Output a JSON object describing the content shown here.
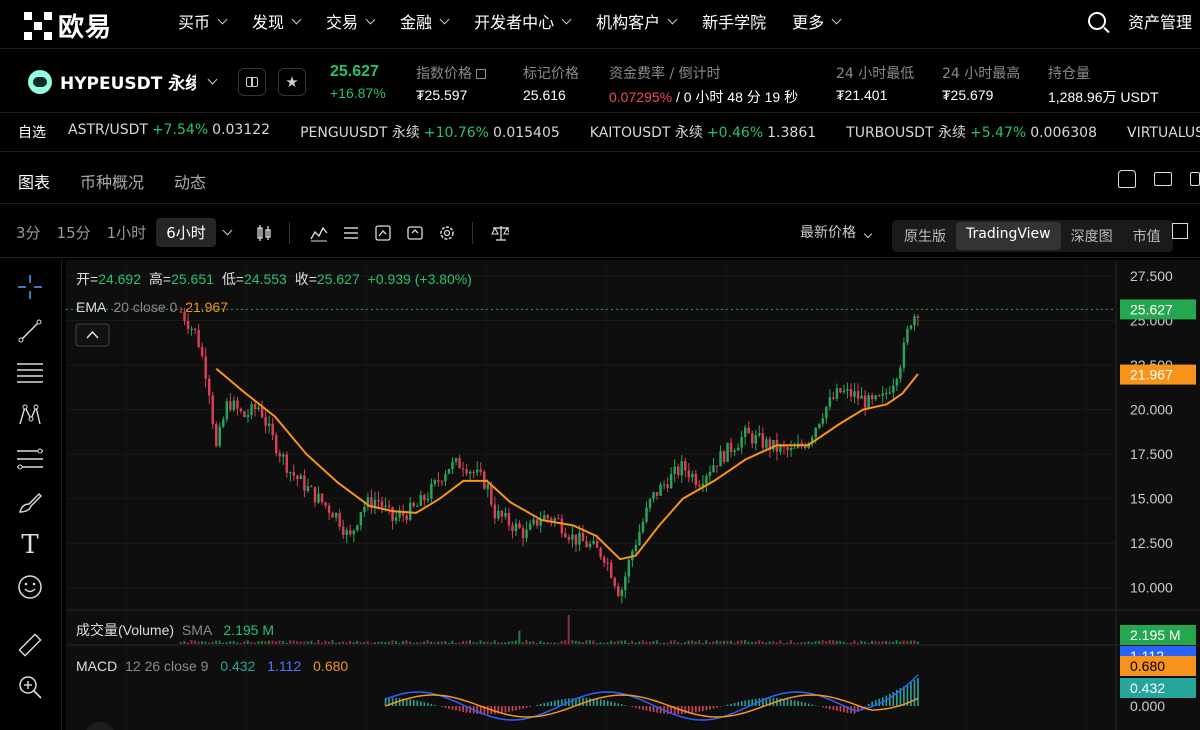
{
  "nav": {
    "logo_text": "欧易",
    "items": [
      "买币",
      "发现",
      "交易",
      "金融",
      "开发者中心",
      "机构客户",
      "新手学院",
      "更多"
    ],
    "has_chevron": [
      true,
      true,
      true,
      true,
      true,
      true,
      false,
      true
    ],
    "assets": "资产管理"
  },
  "ticker": {
    "pair": "HYPEUSDT 永续",
    "last_price": "25.627",
    "change": "+16.87%",
    "stats": [
      {
        "label": "指数价格",
        "value": "₮25.597",
        "ext": true
      },
      {
        "label": "标记价格",
        "value": "25.616"
      },
      {
        "label": "资金费率 / 倒计时",
        "value_red": "0.07295%",
        "value": " / 0 小时 48 分 19 秒"
      },
      {
        "label": "24 小时最低",
        "value": "₮21.401"
      },
      {
        "label": "24 小时最高",
        "value": "₮25.679"
      },
      {
        "label": "持仓量",
        "value": "1,288.96万 USDT"
      }
    ]
  },
  "watchlist": {
    "title": "自选",
    "items": [
      {
        "name": "ASTR/USDT",
        "change": "+7.54%",
        "price": "0.03122"
      },
      {
        "name": "PENGUUSDT 永续",
        "change": "+10.76%",
        "price": "0.015405"
      },
      {
        "name": "KAITOUSDT 永续",
        "change": "+0.46%",
        "price": "1.3861"
      },
      {
        "name": "TURBOUSDT 永续",
        "change": "+5.47%",
        "price": "0.006308"
      },
      {
        "name": "VIRTUALUSDT 永续",
        "change": "+",
        "price": ""
      }
    ]
  },
  "tabs": [
    "图表",
    "币种概况",
    "动态"
  ],
  "toolbar": {
    "timeframes": [
      "3分",
      "15分",
      "1小时",
      "6小时"
    ],
    "active_timeframe": "6小时",
    "price_type": "最新价格",
    "views": [
      "原生版",
      "TradingView",
      "深度图",
      "市值"
    ],
    "active_view": "TradingView"
  },
  "chart_data": {
    "type": "candlestick",
    "ohlc_legend": {
      "open_label": "开=",
      "open": "24.692",
      "high_label": "高=",
      "high": "25.651",
      "low_label": "低=",
      "low": "24.553",
      "close_label": "收=",
      "close": "25.627",
      "change": "+0.939 (+3.80%)"
    },
    "ema_legend": {
      "name": "EMA",
      "params": "20 close 0",
      "value": "21.967"
    },
    "volume_legend": {
      "name": "成交量(Volume)",
      "params": "SMA",
      "value": "2.195 M"
    },
    "macd_legend": {
      "name": "MACD",
      "params": "12 26 close 9",
      "hist": "0.432",
      "macd": "1.112",
      "signal": "0.680"
    },
    "y_ticks": [
      "27.500",
      "25.000",
      "22.500",
      "20.000",
      "17.500",
      "15.000",
      "12.500",
      "10.000"
    ],
    "y_tick_values": [
      27.5,
      25,
      22.5,
      20,
      17.5,
      15,
      12.5,
      10
    ],
    "ylim": [
      8.75,
      28.4
    ],
    "price_tags": [
      {
        "value": 25.627,
        "label": "25.627",
        "color": "#25a750"
      },
      {
        "value": 21.967,
        "label": "21.967",
        "color": "#f7931a"
      }
    ],
    "volume_tag": "2.195 M",
    "macd_tags": [
      {
        "label": "1.112",
        "color": "#2962ff"
      },
      {
        "label": "0.680",
        "color": "#f7931a"
      },
      {
        "label": "0.432",
        "color": "#26a69a"
      }
    ],
    "macd_zero_label": "0.000",
    "price_path": [
      [
        0,
        25.5
      ],
      [
        0.02,
        24.2
      ],
      [
        0.035,
        21.5
      ],
      [
        0.045,
        17.8
      ],
      [
        0.06,
        20.5
      ],
      [
        0.08,
        19.6
      ],
      [
        0.1,
        20.2
      ],
      [
        0.115,
        18.5
      ],
      [
        0.14,
        16.5
      ],
      [
        0.17,
        15.2
      ],
      [
        0.2,
        14.0
      ],
      [
        0.215,
        12.7
      ],
      [
        0.23,
        14.5
      ],
      [
        0.25,
        15.0
      ],
      [
        0.27,
        13.8
      ],
      [
        0.3,
        14.5
      ],
      [
        0.32,
        15.5
      ],
      [
        0.34,
        16.8
      ],
      [
        0.36,
        17.0
      ],
      [
        0.375,
        16.4
      ],
      [
        0.39,
        15.8
      ],
      [
        0.4,
        14.2
      ],
      [
        0.42,
        13.6
      ],
      [
        0.44,
        13.0
      ],
      [
        0.46,
        14.0
      ],
      [
        0.48,
        13.8
      ],
      [
        0.5,
        12.8
      ],
      [
        0.52,
        12.4
      ],
      [
        0.54,
        11.8
      ],
      [
        0.55,
        10.8
      ],
      [
        0.56,
        9.6
      ],
      [
        0.575,
        12.0
      ],
      [
        0.59,
        13.8
      ],
      [
        0.6,
        15.0
      ],
      [
        0.62,
        16.0
      ],
      [
        0.64,
        16.8
      ],
      [
        0.66,
        16.0
      ],
      [
        0.68,
        17.0
      ],
      [
        0.7,
        17.8
      ],
      [
        0.72,
        18.6
      ],
      [
        0.74,
        18.2
      ],
      [
        0.76,
        17.8
      ],
      [
        0.78,
        17.6
      ],
      [
        0.8,
        18.3
      ],
      [
        0.82,
        20.0
      ],
      [
        0.84,
        21.0
      ],
      [
        0.86,
        20.8
      ],
      [
        0.88,
        20.3
      ],
      [
        0.895,
        20.6
      ],
      [
        0.91,
        21.8
      ],
      [
        0.92,
        23.0
      ],
      [
        0.93,
        25.0
      ],
      [
        0.94,
        25.6
      ]
    ],
    "ema_path": [
      [
        0.045,
        22.3
      ],
      [
        0.08,
        21.0
      ],
      [
        0.12,
        19.6
      ],
      [
        0.16,
        17.5
      ],
      [
        0.2,
        15.9
      ],
      [
        0.24,
        14.6
      ],
      [
        0.27,
        14.3
      ],
      [
        0.3,
        14.2
      ],
      [
        0.33,
        15.0
      ],
      [
        0.36,
        16.0
      ],
      [
        0.39,
        16.0
      ],
      [
        0.42,
        14.8
      ],
      [
        0.46,
        13.8
      ],
      [
        0.5,
        13.5
      ],
      [
        0.53,
        12.9
      ],
      [
        0.56,
        11.6
      ],
      [
        0.58,
        11.8
      ],
      [
        0.61,
        13.5
      ],
      [
        0.64,
        15.0
      ],
      [
        0.68,
        16.0
      ],
      [
        0.72,
        17.2
      ],
      [
        0.76,
        18.0
      ],
      [
        0.8,
        18.0
      ],
      [
        0.84,
        19.2
      ],
      [
        0.87,
        20.0
      ],
      [
        0.9,
        20.3
      ],
      [
        0.92,
        20.9
      ],
      [
        0.94,
        22.0
      ]
    ]
  }
}
